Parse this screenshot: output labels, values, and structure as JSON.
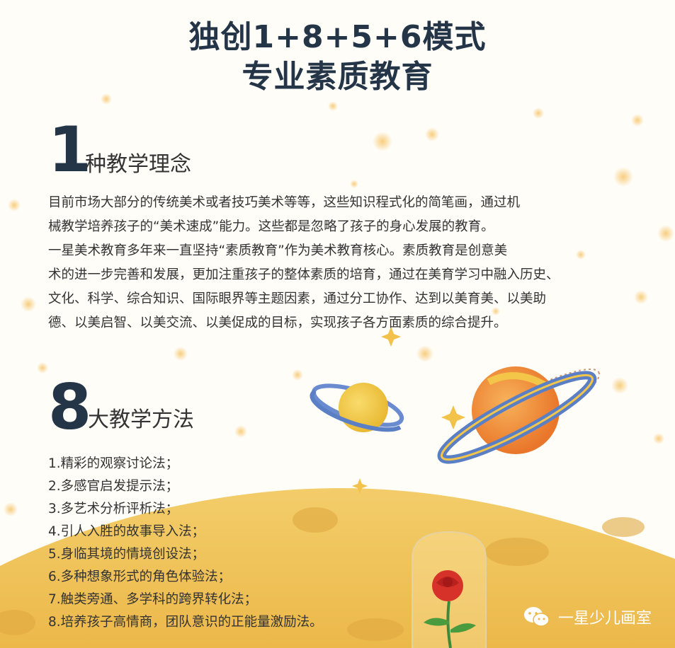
{
  "title_line1": "独创1+8+5+6模式",
  "title_line2": "专业素质教育",
  "section1": {
    "number": "1",
    "heading": "种教学理念",
    "lines": [
      "目前市场大部分的传统美术或者技巧美术等等，这些知识程式化的简笔画，通过机",
      "械教学培养孩子的“美术速成”能力。这些都是忽略了孩子的身心发展的教育。",
      "一星美术教育多年来一直坚持“素质教育”作为美术教育核心。素质教育是创意美",
      "术的进一步完善和发展，更加注重孩子的整体素质的培育，通过在美育学习中融入历史、",
      "文化、科学、综合知识、国际眼界等主题因素，通过分工协作、达到以美育美、以美助",
      "德、以美启智、以美交流、以美促成的目标，实现孩子各方面素质的综合提升。"
    ]
  },
  "section2": {
    "number": "8",
    "heading": "大教学方法",
    "items": [
      "1.精彩的观察讨论法；",
      "2.多感官启发提示法；",
      "3.多艺术分析评析法；",
      "4.引人入胜的故事导入法；",
      "5.身临其境的情境创设法；",
      "6.多种想象形式的角色体验法；",
      "7.触类旁通、多学科的跨界转化法；",
      "8.培养孩子高情商，团队意识的正能量激励法。"
    ]
  },
  "brand": {
    "name": "一星少儿画室",
    "icon": "wechat-icon"
  },
  "colors": {
    "title": "#243548",
    "planet_surface": "#f2c24a",
    "orange_planet": "#f0923a",
    "ring_blue": "#5a7fc4"
  }
}
